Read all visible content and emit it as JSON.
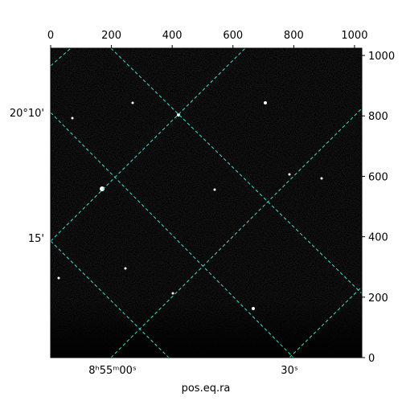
{
  "chart_data": {
    "type": "image",
    "xlabel": "pos.eq.ra",
    "xlim": [
      0,
      1024
    ],
    "ylim": [
      0,
      1024
    ],
    "xticks": [
      0,
      200,
      400,
      600,
      800,
      1000
    ],
    "yticks": [
      0,
      200,
      400,
      600,
      800,
      1000
    ],
    "ra_ticks": [
      "8ʰ55ᵐ00ˢ",
      "30ˢ"
    ],
    "dec_ticks": [
      "20°10'",
      "15'"
    ],
    "grid_color": "#40e0d0"
  }
}
